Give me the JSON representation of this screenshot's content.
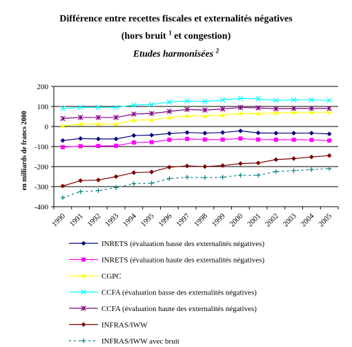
{
  "chart_data": {
    "type": "line",
    "title_line1": "Différence entre recettes fiscales et externalités négatives",
    "title_line2": "(hors bruit",
    "title_line2_sup": "1",
    "title_line2_end": "et congestion)",
    "subtitle": "Etudes harmonisées",
    "subtitle_sup": "2",
    "ylabel": "en milliards de francs 2000",
    "xlabel": "",
    "ylim": [
      -400,
      200
    ],
    "yticks": [
      -400,
      -300,
      -200,
      -100,
      0,
      100,
      200
    ],
    "grid": "horizontal",
    "legend_position": "bottom",
    "categories": [
      "1990",
      "1991",
      "1992",
      "1993",
      "1994",
      "1995",
      "1996",
      "1997",
      "1998",
      "1999",
      "2000",
      "2001",
      "2002",
      "2003",
      "2004",
      "2005"
    ],
    "series": [
      {
        "name": "INRETS (évaluation basse des externalités négatives)",
        "color": "#000080",
        "marker": "diamond",
        "dash": "",
        "values": [
          -70,
          -60,
          -62,
          -62,
          -45,
          -43,
          -35,
          -30,
          -33,
          -30,
          -22,
          -32,
          -33,
          -33,
          -33,
          -37
        ]
      },
      {
        "name": "INRETS (évaluation haute des externalités négatives)",
        "color": "#ff00ff",
        "marker": "square",
        "dash": "",
        "values": [
          -103,
          -98,
          -97,
          -96,
          -80,
          -78,
          -66,
          -62,
          -65,
          -65,
          -60,
          -65,
          -66,
          -66,
          -67,
          -70
        ]
      },
      {
        "name": "CGPC",
        "color": "#ffff00",
        "marker": "triangle",
        "dash": "",
        "values": [
          3,
          12,
          12,
          12,
          32,
          33,
          45,
          53,
          52,
          57,
          65,
          65,
          68,
          70,
          70,
          72
        ]
      },
      {
        "name": "CCFA (évaluation basse des externalités négatives)",
        "color": "#00ffff",
        "marker": "x",
        "dash": "",
        "values": [
          90,
          95,
          95,
          95,
          107,
          110,
          122,
          127,
          125,
          132,
          140,
          138,
          130,
          133,
          133,
          130
        ]
      },
      {
        "name": "CCFA (évaluation haute des externalités négatives)",
        "color": "#800080",
        "marker": "star",
        "dash": "",
        "values": [
          40,
          45,
          45,
          45,
          62,
          65,
          75,
          85,
          82,
          87,
          95,
          93,
          88,
          90,
          90,
          90
        ]
      },
      {
        "name": "INFRAS/IWW",
        "color": "#800000",
        "marker": "diamond",
        "dash": "",
        "values": [
          -297,
          -270,
          -267,
          -250,
          -230,
          -227,
          -203,
          -197,
          -200,
          -195,
          -185,
          -182,
          -165,
          -160,
          -152,
          -145
        ]
      },
      {
        "name": "INFRAS/IWW avec bruit",
        "color": "#008080",
        "marker": "plus",
        "dash": "3,4",
        "values": [
          -355,
          -325,
          -320,
          -305,
          -285,
          -283,
          -260,
          -253,
          -255,
          -253,
          -243,
          -243,
          -225,
          -220,
          -215,
          -210
        ]
      }
    ]
  }
}
